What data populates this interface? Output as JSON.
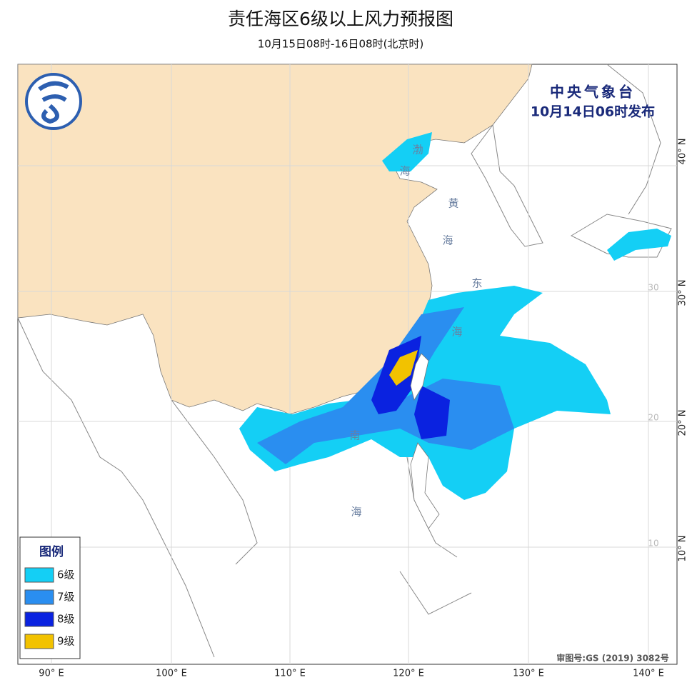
{
  "header": {
    "title": "责任海区6级以上风力预报图",
    "subtitle": "10月15日08时-16日08时(北京时)"
  },
  "issuer": {
    "name": "中央气象台",
    "time": "10月14日06时发布"
  },
  "sea_labels": [
    "渤",
    "海",
    "黄",
    "海",
    "东",
    "海",
    "南",
    "海"
  ],
  "legend": {
    "title": "图例",
    "items": [
      {
        "label": "6级",
        "color": "#14cff5"
      },
      {
        "label": "7级",
        "color": "#2a8ef0"
      },
      {
        "label": "8级",
        "color": "#0a22e0"
      },
      {
        "label": "9级",
        "color": "#f2c200"
      }
    ]
  },
  "axes": {
    "lon_labels": [
      "90° E",
      "100° E",
      "110° E",
      "120° E",
      "130° E",
      "140° E"
    ],
    "lat_labels": [
      "40° N",
      "30° N",
      "20° N",
      "10° N"
    ],
    "grid_labels": [
      "30",
      "20",
      "10"
    ]
  },
  "footer": {
    "approval": "审图号:GS (2019) 3082号"
  }
}
